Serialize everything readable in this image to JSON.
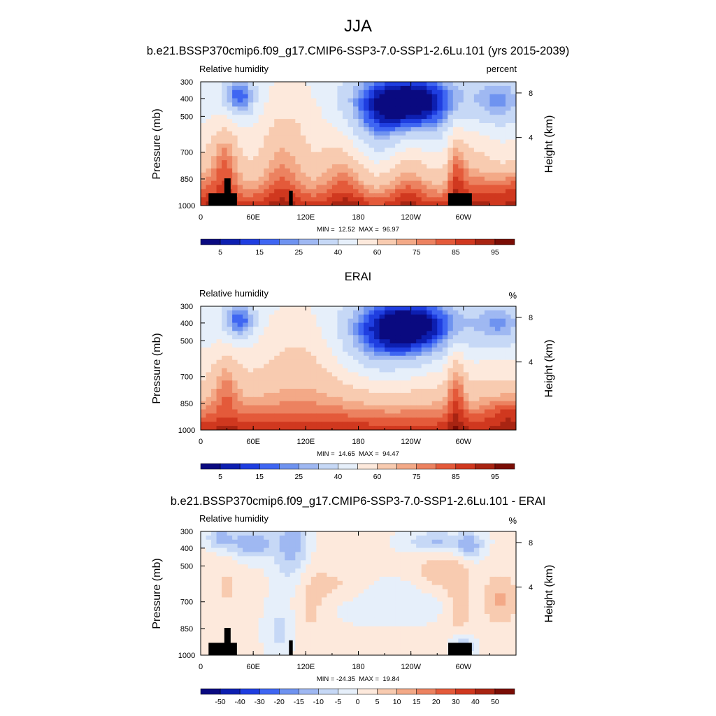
{
  "figure": {
    "title": "JJA"
  },
  "chart_data": [
    {
      "type": "heatmap",
      "title": "b.e21.BSSP370cmip6.f09_g17.CMIP6-SSP3-7.0-SSP1-2.6Lu.101 (yrs 2015-2039)",
      "variable_label": "Relative humidity",
      "units_label": "percent",
      "ylabel": "Pressure (mb)",
      "ylabel_right": "Height (km)",
      "x_ticks": [
        "0",
        "60E",
        "120E",
        "180",
        "120W",
        "60W"
      ],
      "y_ticks": [
        "300",
        "400",
        "500",
        "700",
        "850",
        "1000"
      ],
      "right_ticks": [
        "8",
        "4"
      ],
      "stats": "MIN =  12.52  MAX =  96.97",
      "min": 12.52,
      "max": 96.97,
      "colorbar_labels": [
        "5",
        "15",
        "25",
        "40",
        "60",
        "75",
        "85",
        "95"
      ],
      "colorbar_colors": [
        "#0a0a80",
        "#0d1fb0",
        "#1f3ee0",
        "#3f66f2",
        "#6f93f0",
        "#9fb8f2",
        "#c6d8f6",
        "#e6effa",
        "#fde9dc",
        "#f8cbb0",
        "#f3a987",
        "#ec8260",
        "#e45a3a",
        "#d0381f",
        "#a82412",
        "#7a0d05"
      ],
      "topography": true,
      "plot": "model"
    },
    {
      "type": "heatmap",
      "title": "ERAI",
      "variable_label": "Relative humidity",
      "units_label": "%",
      "ylabel": "Pressure (mb)",
      "ylabel_right": "Height (km)",
      "x_ticks": [
        "0",
        "60E",
        "120E",
        "180",
        "120W",
        "60W"
      ],
      "y_ticks": [
        "300",
        "400",
        "500",
        "700",
        "850",
        "1000"
      ],
      "right_ticks": [
        "8",
        "4"
      ],
      "stats": "MIN =  14.65  MAX =  94.47",
      "min": 14.65,
      "max": 94.47,
      "colorbar_labels": [
        "5",
        "15",
        "25",
        "40",
        "60",
        "75",
        "85",
        "95"
      ],
      "colorbar_colors": [
        "#0a0a80",
        "#0d1fb0",
        "#1f3ee0",
        "#3f66f2",
        "#6f93f0",
        "#9fb8f2",
        "#c6d8f6",
        "#e6effa",
        "#fde9dc",
        "#f8cbb0",
        "#f3a987",
        "#ec8260",
        "#e45a3a",
        "#d0381f",
        "#a82412",
        "#7a0d05"
      ],
      "topography": false,
      "plot": "obs"
    },
    {
      "type": "heatmap",
      "title": "b.e21.BSSP370cmip6.f09_g17.CMIP6-SSP3-7.0-SSP1-2.6Lu.101 - ERAI",
      "variable_label": "Relative humidity",
      "units_label": "%",
      "ylabel": "Pressure (mb)",
      "ylabel_right": "Height (km)",
      "x_ticks": [
        "0",
        "60E",
        "120E",
        "180",
        "120W",
        "60W"
      ],
      "y_ticks": [
        "300",
        "400",
        "500",
        "700",
        "850",
        "1000"
      ],
      "right_ticks": [
        "8",
        "4"
      ],
      "stats": "MIN = -24.35  MAX =  19.84",
      "min": -24.35,
      "max": 19.84,
      "colorbar_labels": [
        "-50",
        "-40",
        "-30",
        "-20",
        "-15",
        "-10",
        "-5",
        "0",
        "5",
        "10",
        "15",
        "20",
        "30",
        "40",
        "50"
      ],
      "colorbar_colors": [
        "#0a0a80",
        "#0d1fb0",
        "#1f3ee0",
        "#3f66f2",
        "#6f93f0",
        "#9fb8f2",
        "#c6d8f6",
        "#e6effa",
        "#fde9dc",
        "#f8cbb0",
        "#f3a987",
        "#ec8260",
        "#e45a3a",
        "#d0381f",
        "#a82412",
        "#7a0d05"
      ],
      "topography": true,
      "plot": "diff"
    }
  ]
}
